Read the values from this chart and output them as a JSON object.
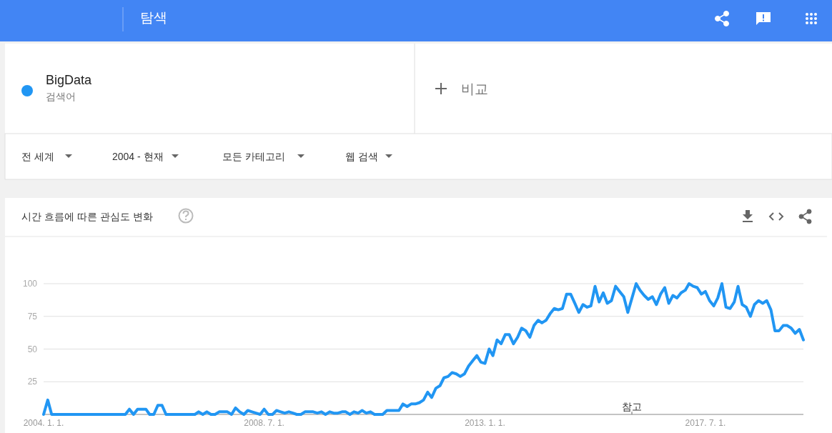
{
  "chart_data": {
    "type": "line",
    "title": "시간 흐름에 따른 관심도 변화",
    "annotations": [
      "탐색",
      "검색어",
      "비교",
      "전 세계",
      "2004 - 현재",
      "모든 카테고리",
      "웹 검색",
      "참고"
    ],
    "legend": "top left",
    "series": [
      {
        "name": "BigData",
        "color": "#2196f3",
        "x": [
          "2004-01",
          "2004-02",
          "2004-03",
          "2004-04",
          "2004-05",
          "2004-06",
          "2004-07",
          "2004-08",
          "2004-09",
          "2004-10",
          "2004-11",
          "2004-12",
          "2005-01",
          "2005-02",
          "2005-03",
          "2005-04",
          "2005-05",
          "2005-06",
          "2005-07",
          "2005-08",
          "2005-09",
          "2005-10",
          "2005-11",
          "2005-12",
          "2006-01",
          "2006-02",
          "2006-03",
          "2006-04",
          "2006-05",
          "2006-06",
          "2006-07",
          "2006-08",
          "2006-09",
          "2006-10",
          "2006-11",
          "2006-12",
          "2007-01",
          "2007-02",
          "2007-03",
          "2007-04",
          "2007-05",
          "2007-06",
          "2007-07",
          "2007-08",
          "2007-09",
          "2007-10",
          "2007-11",
          "2007-12",
          "2008-01",
          "2008-02",
          "2008-03",
          "2008-04",
          "2008-05",
          "2008-06",
          "2008-07",
          "2008-08",
          "2008-09",
          "2008-10",
          "2008-11",
          "2008-12",
          "2009-01",
          "2009-02",
          "2009-03",
          "2009-04",
          "2009-05",
          "2009-06",
          "2009-07",
          "2009-08",
          "2009-09",
          "2009-10",
          "2009-11",
          "2009-12",
          "2010-01",
          "2010-02",
          "2010-03",
          "2010-04",
          "2010-05",
          "2010-06",
          "2010-07",
          "2010-08",
          "2010-09",
          "2010-10",
          "2010-11",
          "2010-12",
          "2011-01",
          "2011-02",
          "2011-03",
          "2011-04",
          "2011-05",
          "2011-06",
          "2011-07",
          "2011-08",
          "2011-09",
          "2011-10",
          "2011-11",
          "2011-12",
          "2012-01",
          "2012-02",
          "2012-03",
          "2012-04",
          "2012-05",
          "2012-06",
          "2012-07",
          "2012-08",
          "2012-09",
          "2012-10",
          "2012-11",
          "2012-12",
          "2013-01",
          "2013-02",
          "2013-03",
          "2013-04",
          "2013-05",
          "2013-06",
          "2013-07",
          "2013-08",
          "2013-09",
          "2013-10",
          "2013-11",
          "2013-12",
          "2014-01",
          "2014-02",
          "2014-03",
          "2014-04",
          "2014-05",
          "2014-06",
          "2014-07",
          "2014-08",
          "2014-09",
          "2014-10",
          "2014-11",
          "2014-12",
          "2015-01",
          "2015-02",
          "2015-03",
          "2015-04",
          "2015-05",
          "2015-06",
          "2015-07",
          "2015-08",
          "2015-09",
          "2015-10",
          "2015-11",
          "2015-12",
          "2016-01",
          "2016-02",
          "2016-03",
          "2016-04",
          "2016-05",
          "2016-06",
          "2016-07",
          "2016-08",
          "2016-09",
          "2016-10",
          "2016-11",
          "2016-12",
          "2017-01",
          "2017-02",
          "2017-03",
          "2017-04",
          "2017-05",
          "2017-06",
          "2017-07",
          "2017-08",
          "2017-09",
          "2017-10",
          "2017-11",
          "2017-12",
          "2018-01",
          "2018-02",
          "2018-03",
          "2018-04",
          "2018-05",
          "2018-06",
          "2018-07",
          "2018-08",
          "2018-09",
          "2018-10",
          "2018-11",
          "2018-12",
          "2019-01",
          "2019-02",
          "2019-03",
          "2019-04",
          "2019-05",
          "2019-06",
          "2019-07"
        ],
        "values": [
          0,
          11,
          0,
          0,
          0,
          0,
          0,
          0,
          0,
          0,
          0,
          0,
          0,
          0,
          0,
          0,
          0,
          0,
          0,
          0,
          0,
          4,
          0,
          4,
          4,
          4,
          0,
          0,
          7,
          7,
          0,
          0,
          0,
          0,
          0,
          0,
          0,
          0,
          2,
          0,
          2,
          0,
          0,
          2,
          2,
          2,
          0,
          5,
          2,
          0,
          3,
          2,
          1,
          0,
          4,
          0,
          0,
          3,
          2,
          1,
          2,
          1,
          0,
          0,
          2,
          2,
          2,
          1,
          2,
          0,
          2,
          1,
          1,
          2,
          2,
          0,
          2,
          1,
          3,
          1,
          2,
          0,
          0,
          0,
          3,
          3,
          3,
          3,
          8,
          6,
          8,
          8,
          9,
          11,
          17,
          13,
          20,
          22,
          28,
          29,
          32,
          31,
          29,
          31,
          37,
          41,
          45,
          40,
          39,
          50,
          45,
          57,
          54,
          61,
          61,
          54,
          59,
          66,
          64,
          59,
          68,
          72,
          70,
          72,
          77,
          81,
          80,
          81,
          92,
          92,
          85,
          78,
          84,
          82,
          83,
          98,
          86,
          93,
          85,
          87,
          98,
          94,
          90,
          78,
          89,
          100,
          95,
          91,
          88,
          90,
          84,
          92,
          97,
          85,
          91,
          89,
          93,
          95,
          100,
          98,
          97,
          92,
          94,
          87,
          83,
          89,
          100,
          82,
          81,
          86,
          98,
          84,
          82,
          75,
          84,
          87,
          85,
          87,
          80,
          64,
          64,
          68,
          68,
          66,
          62,
          65,
          57
        ]
      }
    ],
    "xlim": [
      "2004-01",
      "2019-07"
    ],
    "xticks": [
      {
        "value": "2004-01",
        "label": "2004. 1. 1."
      },
      {
        "value": "2008-07",
        "label": "2008. 7. 1."
      },
      {
        "value": "2013-01",
        "label": "2013. 1. 1."
      },
      {
        "value": "2017-07",
        "label": "2017. 7. 1."
      }
    ],
    "ylim": [
      0,
      100
    ],
    "yticks": [
      {
        "value": 0,
        "label": null
      },
      25,
      50,
      75,
      100
    ],
    "grid": "y",
    "line_style": "solid",
    "marker": "none"
  }
}
